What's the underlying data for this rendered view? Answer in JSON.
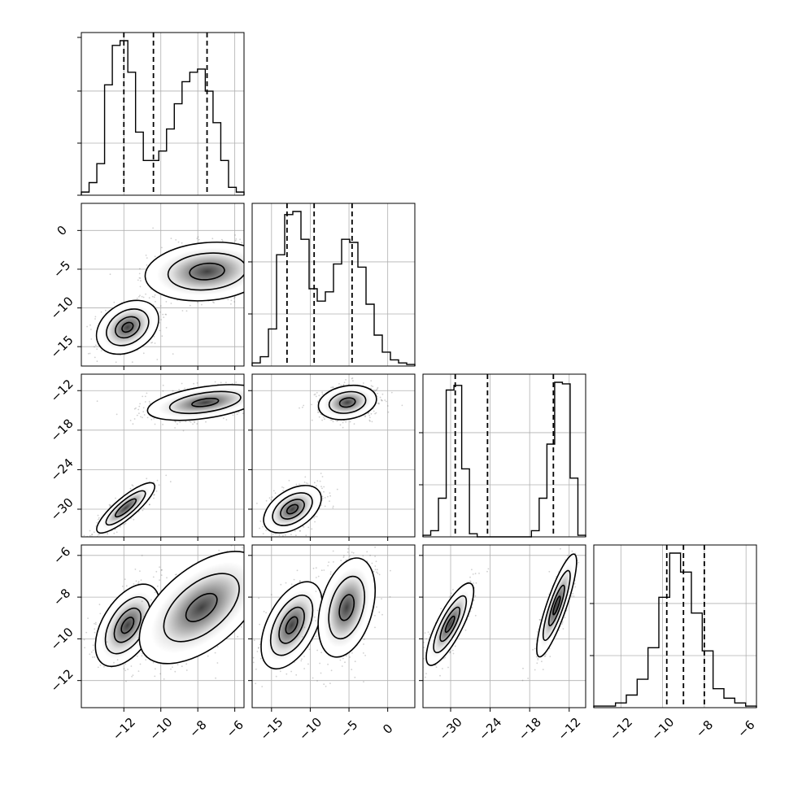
{
  "chart_data": {
    "type": "corner",
    "title": "",
    "grid": true,
    "legend": "none",
    "dimensions": [
      {
        "index": 0,
        "range": [
          -14.3,
          -5.5
        ],
        "ticks": [
          -12,
          -10,
          -8,
          -6
        ],
        "tick_labels": [
          "−12",
          "−10",
          "−8",
          "−6"
        ],
        "quantiles": [
          -12.0,
          -10.4,
          -7.5
        ]
      },
      {
        "index": 1,
        "range": [
          -17.5,
          3.5
        ],
        "ticks": [
          -15,
          -10,
          -5,
          0
        ],
        "tick_labels": [
          "−15",
          "−10",
          "−5",
          "0"
        ],
        "quantiles": [
          -13.0,
          -9.5,
          -4.6
        ]
      },
      {
        "index": 2,
        "range": [
          -34.2,
          -9.5
        ],
        "ticks": [
          -30,
          -24,
          -18,
          -12
        ],
        "tick_labels": [
          "−30",
          "−24",
          "−18",
          "−12"
        ],
        "quantiles": [
          -29.3,
          -24.4,
          -14.4
        ]
      },
      {
        "index": 3,
        "range": [
          -13.3,
          -5.5
        ],
        "ticks": [
          -12,
          -10,
          -8,
          -6
        ],
        "tick_labels": [
          "−12",
          "−10",
          "−8",
          "−6"
        ],
        "quantiles": [
          -9.8,
          -9.0,
          -8.0
        ]
      }
    ],
    "histograms": [
      {
        "dim": 0,
        "counts": [
          2,
          8,
          20,
          70,
          95,
          98,
          78,
          40,
          22,
          22,
          28,
          42,
          58,
          72,
          78,
          80,
          66,
          46,
          22,
          5,
          2
        ]
      },
      {
        "dim": 1,
        "counts": [
          2,
          6,
          24,
          72,
          98,
          100,
          82,
          50,
          42,
          48,
          66,
          82,
          80,
          64,
          40,
          20,
          9,
          4,
          2,
          1
        ]
      },
      {
        "dim": 2,
        "counts": [
          1,
          4,
          25,
          95,
          98,
          44,
          2,
          0,
          0,
          0,
          0,
          0,
          0,
          0,
          4,
          25,
          60,
          100,
          99,
          38,
          1
        ]
      },
      {
        "dim": 3,
        "counts": [
          1,
          1,
          3,
          8,
          18,
          38,
          70,
          98,
          86,
          60,
          36,
          12,
          6,
          3,
          1
        ]
      }
    ],
    "pairs": [
      {
        "x_dim": 0,
        "y_dim": 1,
        "clusters": [
          {
            "center": [
              -11.8,
              -12.5
            ],
            "spread": [
              0.75,
              1.55
            ],
            "corr": 0.3,
            "levels": [
              1.4,
              0.95,
              0.55,
              0.25
            ]
          },
          {
            "center": [
              -7.5,
              -5.3
            ],
            "spread": [
              1.55,
              1.75
            ],
            "corr": 0.15,
            "levels": [
              1.35,
              0.85,
              0.38
            ]
          }
        ]
      },
      {
        "x_dim": 0,
        "y_dim": 2,
        "clusters": [
          {
            "center": [
              -11.9,
              -29.8
            ],
            "spread": [
              0.7,
              1.7
            ],
            "corr": 0.85,
            "levels": [
              1.4,
              0.95,
              0.5
            ]
          },
          {
            "center": [
              -7.6,
              -13.8
            ],
            "spread": [
              1.5,
              1.3
            ],
            "corr": 0.45,
            "levels": [
              1.3,
              0.8,
              0.3
            ]
          }
        ]
      },
      {
        "x_dim": 1,
        "y_dim": 2,
        "clusters": [
          {
            "center": [
              -12.3,
              -30.0
            ],
            "spread": [
              1.6,
              1.55
            ],
            "corr": 0.45,
            "levels": [
              1.45,
              1.0,
              0.6,
              0.28
            ]
          },
          {
            "center": [
              -5.2,
              -13.8
            ],
            "spread": [
              1.8,
              1.25
            ],
            "corr": 0.2,
            "levels": [
              1.3,
              0.82,
              0.35
            ]
          }
        ]
      },
      {
        "x_dim": 0,
        "y_dim": 3,
        "clusters": [
          {
            "center": [
              -11.8,
              -9.35
            ],
            "spread": [
              0.75,
              0.85
            ],
            "corr": 0.5,
            "levels": [
              1.45,
              1.0,
              0.6,
              0.28
            ]
          },
          {
            "center": [
              -7.8,
              -8.5
            ],
            "spread": [
              1.5,
              1.2
            ],
            "corr": 0.55,
            "levels": [
              1.4,
              0.85,
              0.35
            ]
          }
        ]
      },
      {
        "x_dim": 1,
        "y_dim": 3,
        "clusters": [
          {
            "center": [
              -12.4,
              -9.35
            ],
            "spread": [
              1.7,
              0.9
            ],
            "corr": 0.5,
            "levels": [
              1.45,
              1.0,
              0.6,
              0.28
            ]
          },
          {
            "center": [
              -5.3,
              -8.5
            ],
            "spread": [
              1.7,
              1.1
            ],
            "corr": 0.35,
            "levels": [
              1.35,
              0.85,
              0.35
            ]
          }
        ]
      },
      {
        "x_dim": 2,
        "y_dim": 3,
        "clusters": [
          {
            "center": [
              -30.1,
              -9.3
            ],
            "spread": [
              1.55,
              0.85
            ],
            "corr": 0.8,
            "levels": [
              1.45,
              1.0,
              0.6,
              0.28
            ]
          },
          {
            "center": [
              -13.9,
              -8.4
            ],
            "spread": [
              1.35,
              1.1
            ],
            "corr": 0.85,
            "levels": [
              1.4,
              0.95,
              0.55,
              0.25
            ]
          }
        ]
      }
    ]
  }
}
